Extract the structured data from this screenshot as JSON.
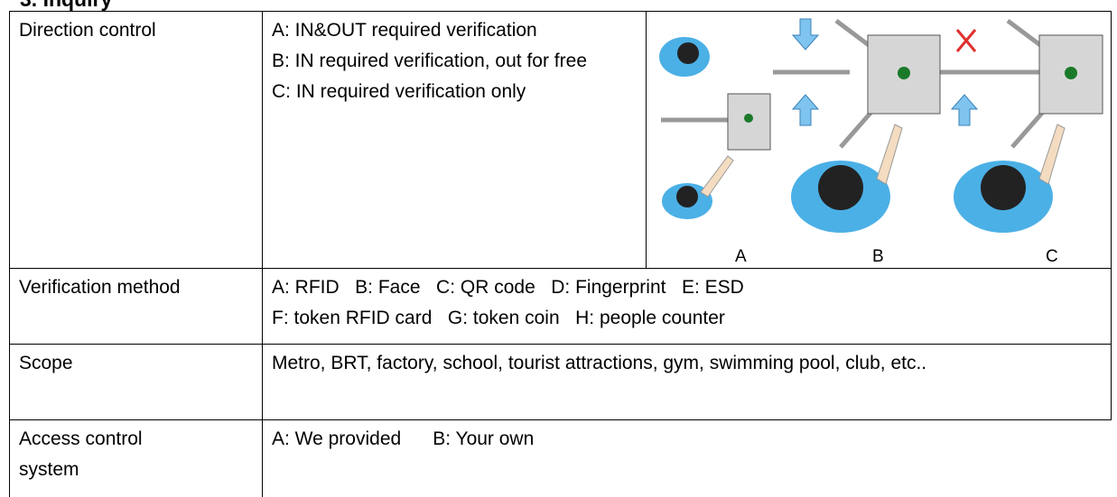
{
  "heading": "3.  Inquiry",
  "table": {
    "rows": [
      {
        "label": "Direction control",
        "lines": [
          "A: IN&OUT required verification",
          "B: IN required verification, out for free",
          "C: IN required verification only"
        ],
        "figure_labels": [
          "A",
          "B",
          "C"
        ]
      },
      {
        "label": "Verification method",
        "lines": [
          "A: RFID   B: Face   C: QR code   D: Fingerprint   E: ESD",
          "F: token RFID card   G: token coin   H: people counter"
        ]
      },
      {
        "label": "Scope",
        "lines": [
          "Metro, BRT, factory, school, tourist attractions, gym, swimming pool, club, etc.."
        ]
      },
      {
        "label": "Access control system",
        "lines": [
          "A: We provided      B: Your own"
        ]
      }
    ]
  }
}
